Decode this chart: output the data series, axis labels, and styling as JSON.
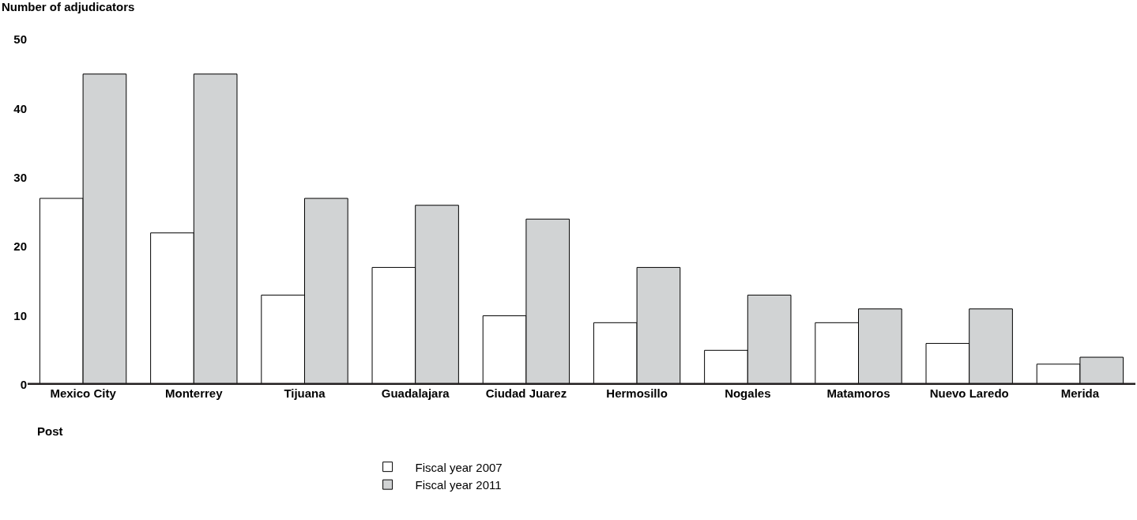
{
  "chart_data": {
    "type": "bar",
    "ylabel": "Number of adjudicators",
    "xlabel": "Post",
    "categories": [
      "Mexico City",
      "Monterrey",
      "Tijuana",
      "Guadalajara",
      "Ciudad Juarez",
      "Hermosillo",
      "Nogales",
      "Matamoros",
      "Nuevo Laredo",
      "Merida"
    ],
    "series": [
      {
        "name": "Fiscal year 2007",
        "color": "#ffffff",
        "values": [
          27,
          22,
          13,
          17,
          10,
          9,
          5,
          9,
          6,
          3
        ]
      },
      {
        "name": "Fiscal year 2011",
        "color": "#d1d3d4",
        "values": [
          45,
          45,
          27,
          26,
          24,
          17,
          13,
          11,
          11,
          4
        ]
      }
    ],
    "ylim": [
      0,
      50
    ],
    "yticks": [
      0,
      10,
      20,
      30,
      40,
      50
    ],
    "grid": false,
    "legend": "bottom"
  }
}
